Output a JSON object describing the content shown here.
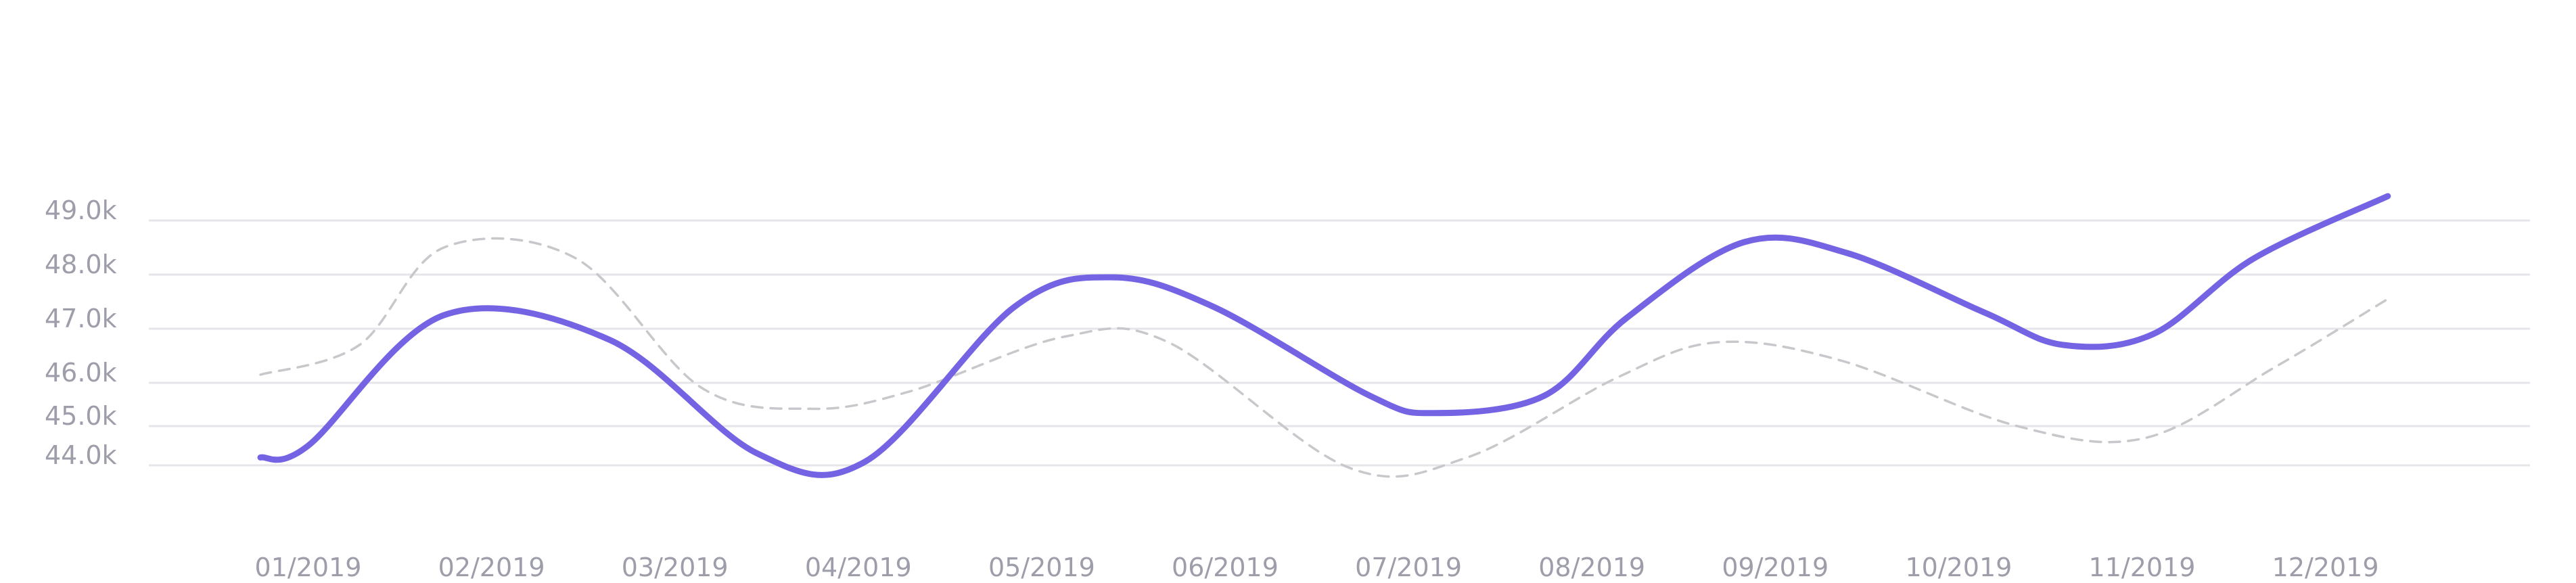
{
  "chart_data": {
    "type": "line",
    "categories": [
      "01/2019",
      "02/2019",
      "03/2019",
      "04/2019",
      "05/2019",
      "06/2019",
      "07/2019",
      "08/2019",
      "09/2019",
      "10/2019",
      "11/2019",
      "12/2019"
    ],
    "y_ticks": [
      "49.0k",
      "48.0k",
      "47.0k",
      "46.0k",
      "45.0k",
      "44.0k"
    ],
    "y_tick_values": [
      49000,
      48000,
      47000,
      46000,
      45000,
      44000
    ],
    "series": [
      {
        "style": "solid",
        "color": "#7464e4",
        "x": [
          0.0,
          0.26,
          1.0,
          1.9,
          2.71,
          3.3,
          4.11,
          4.64,
          5.2,
          6.05,
          6.4,
          7.0,
          7.45,
          8.09,
          8.65,
          9.4,
          9.83,
          10.32,
          10.87,
          11.6
        ],
        "values": [
          44200,
          44500,
          47250,
          46800,
          44300,
          44100,
          47400,
          47950,
          47400,
          45700,
          45300,
          45700,
          47200,
          48600,
          48400,
          47300,
          46700,
          46900,
          48300,
          49450
        ]
      },
      {
        "style": "dashed",
        "color": "#c8c8cc",
        "x": [
          0.0,
          0.54,
          1.0,
          1.72,
          2.4,
          3.0,
          3.54,
          4.38,
          4.95,
          5.93,
          6.58,
          7.4,
          7.95,
          8.63,
          9.58,
          10.28,
          10.99,
          11.6
        ],
        "values": [
          46150,
          46700,
          48500,
          48300,
          45900,
          45400,
          45800,
          46850,
          46750,
          43950,
          44200,
          46100,
          46750,
          46400,
          45000,
          44700,
          46300,
          47550
        ]
      }
    ],
    "grid": "horizontal",
    "legend": "none"
  }
}
